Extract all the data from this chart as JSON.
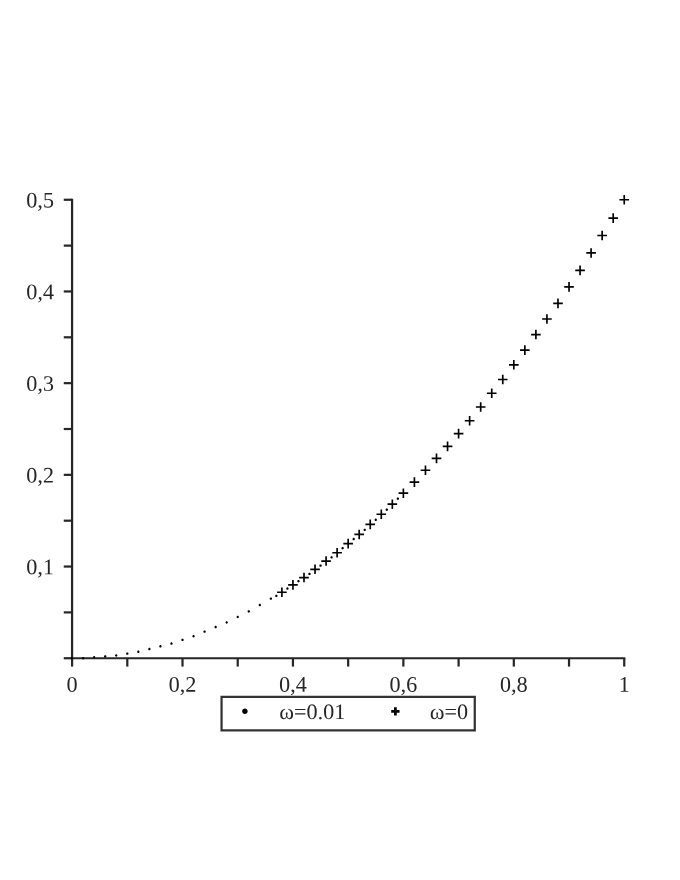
{
  "chart_data": {
    "type": "scatter",
    "xlim": [
      0,
      1
    ],
    "ylim": [
      0,
      0.5
    ],
    "xticks": [
      0,
      {
        "value": 0.1,
        "label": null
      },
      {
        "value": 0.2,
        "label": "0,2"
      },
      {
        "value": 0.3,
        "label": null
      },
      {
        "value": 0.4,
        "label": "0,4"
      },
      {
        "value": 0.5,
        "label": null
      },
      {
        "value": 0.6,
        "label": "0,6"
      },
      {
        "value": 0.7,
        "label": null
      },
      {
        "value": 0.8,
        "label": "0,8"
      },
      {
        "value": 0.9,
        "label": null
      },
      1
    ],
    "yticks": [
      {
        "value": 0,
        "label": null
      },
      {
        "value": 0.05,
        "label": null
      },
      {
        "value": 0.1,
        "label": "0,1"
      },
      {
        "value": 0.15,
        "label": null
      },
      {
        "value": 0.2,
        "label": "0,2"
      },
      {
        "value": 0.25,
        "label": null
      },
      {
        "value": 0.3,
        "label": "0,3"
      },
      {
        "value": 0.35,
        "label": null
      },
      {
        "value": 0.4,
        "label": "0,4"
      },
      {
        "value": 0.45,
        "label": null
      },
      {
        "value": 0.5,
        "label": "0,5"
      }
    ],
    "grid": false,
    "legend": "bottom",
    "series": [
      {
        "name": "ω=0.01",
        "color": "#000000",
        "marker": "circle",
        "x": [
          0,
          0.02,
          0.04,
          0.06,
          0.08,
          0.1,
          0.12,
          0.14,
          0.16,
          0.18,
          0.2,
          0.22,
          0.24,
          0.26,
          0.28,
          0.3,
          0.32,
          0.34,
          0.36,
          0.37,
          0.39,
          0.41,
          0.43,
          0.45,
          0.47,
          0.49,
          0.51,
          0.53,
          0.55,
          0.57,
          0.59
        ],
        "values": [
          0,
          0.0,
          0.001,
          0.002,
          0.003,
          0.005,
          0.007,
          0.01,
          0.013,
          0.016,
          0.02,
          0.024,
          0.029,
          0.034,
          0.039,
          0.045,
          0.051,
          0.058,
          0.065,
          0.068,
          0.076,
          0.084,
          0.092,
          0.101,
          0.11,
          0.12,
          0.13,
          0.14,
          0.151,
          0.162,
          0.174
        ]
      },
      {
        "name": "ω=0",
        "color": "#000000",
        "marker": "cross",
        "x": [
          0.38,
          0.4,
          0.42,
          0.44,
          0.46,
          0.48,
          0.5,
          0.52,
          0.54,
          0.56,
          0.58,
          0.6,
          0.62,
          0.64,
          0.66,
          0.68,
          0.7,
          0.72,
          0.74,
          0.76,
          0.78,
          0.8,
          0.82,
          0.84,
          0.86,
          0.88,
          0.9,
          0.92,
          0.94,
          0.96,
          0.98,
          1
        ],
        "values": [
          0.072,
          0.08,
          0.088,
          0.097,
          0.106,
          0.115,
          0.125,
          0.135,
          0.146,
          0.157,
          0.168,
          0.18,
          0.192,
          0.205,
          0.218,
          0.231,
          0.245,
          0.259,
          0.274,
          0.289,
          0.304,
          0.32,
          0.336,
          0.353,
          0.37,
          0.387,
          0.405,
          0.423,
          0.442,
          0.461,
          0.48,
          0.5
        ]
      }
    ]
  }
}
